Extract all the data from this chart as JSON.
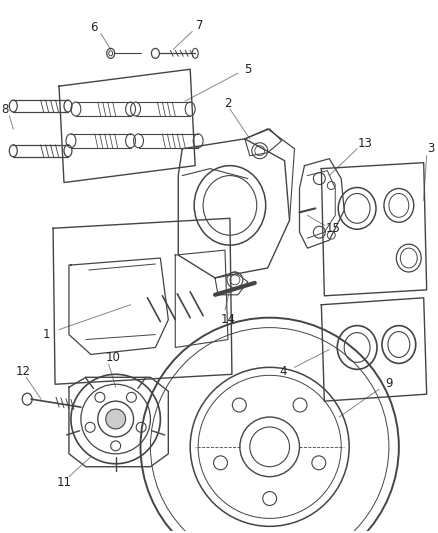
{
  "background_color": "#ffffff",
  "line_color": "#444444",
  "label_color": "#222222",
  "leader_color": "#888888",
  "label_fontsize": 8.5,
  "figsize": [
    4.38,
    5.33
  ],
  "dpi": 100
}
